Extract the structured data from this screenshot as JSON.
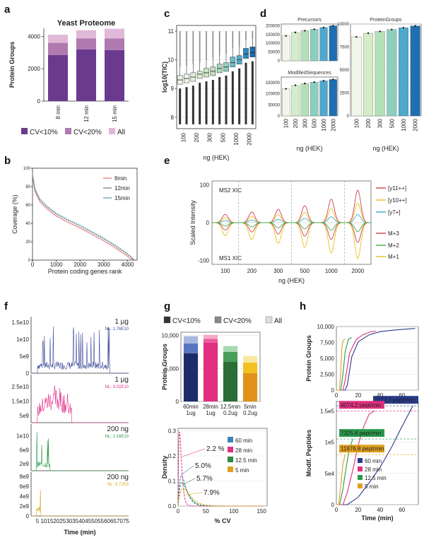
{
  "panels": {
    "a": "a",
    "b": "b",
    "c": "c",
    "d": "d",
    "e": "e",
    "f": "f",
    "g": "g",
    "h": "h"
  },
  "chart_data": [
    {
      "id": "a",
      "type": "bar",
      "stacked": true,
      "title": "Yeast Proteome",
      "ylabel": "Protein Groups",
      "xlabel": "",
      "categories": [
        "8 min",
        "12 min",
        "15 min"
      ],
      "ylim": [
        0,
        4500
      ],
      "yticks": [
        "0",
        "2000",
        "4000"
      ],
      "series": [
        {
          "name": "CV<10%",
          "color": "#6a3a8e",
          "values": [
            2850,
            3200,
            3150
          ]
        },
        {
          "name": "CV<20%",
          "color": "#b07ab0",
          "values": [
            750,
            680,
            720
          ]
        },
        {
          "name": "All",
          "color": "#e0b8d8",
          "values": [
            500,
            500,
            600
          ]
        }
      ]
    },
    {
      "id": "b",
      "type": "line",
      "xlabel": "Protein coding genes rank",
      "ylabel": "Coverage (%)",
      "xlim": [
        0,
        4400
      ],
      "ylim": [
        0,
        100
      ],
      "xticks": [
        "0",
        "1000",
        "2000",
        "3000",
        "4000"
      ],
      "yticks": [
        "0",
        "20",
        "40",
        "60",
        "80",
        "100"
      ],
      "x": [
        0,
        100,
        300,
        600,
        1000,
        1500,
        2000,
        2500,
        3000,
        3500,
        3900,
        4100,
        4300
      ],
      "series": [
        {
          "name": "8min",
          "color": "#e07070",
          "values": [
            92,
            75,
            64,
            56,
            48,
            41,
            35,
            28,
            21,
            13,
            6,
            2,
            0
          ]
        },
        {
          "name": "12min",
          "color": "#777777",
          "values": [
            93,
            77,
            66,
            58,
            50,
            43,
            37,
            30,
            23,
            15,
            8,
            4,
            0
          ]
        },
        {
          "name": "15min",
          "color": "#4fa3a8",
          "values": [
            94,
            78,
            67,
            59,
            51,
            44,
            38,
            31,
            24,
            16,
            9,
            5,
            0
          ]
        }
      ]
    },
    {
      "id": "c",
      "type": "box",
      "xlabel": "ng (HEK)",
      "ylabel": "log10(TIC)",
      "ylim": [
        7.6,
        11.2
      ],
      "yticks": [
        "8",
        "9",
        "10",
        "11"
      ],
      "categories": [
        "100",
        "200",
        "300",
        "500",
        "1000",
        "2000"
      ],
      "boxes": [
        {
          "cat": "100",
          "color": "#eef6e8",
          "q1": 9.15,
          "med": 9.3,
          "q3": 9.45
        },
        {
          "cat": "100",
          "color": "#eef6e8",
          "q1": 9.2,
          "med": 9.35,
          "q3": 9.5
        },
        {
          "cat": "200",
          "color": "#e2f0d8",
          "q1": 9.25,
          "med": 9.4,
          "q3": 9.55
        },
        {
          "cat": "200",
          "color": "#d8ecd0",
          "q1": 9.35,
          "med": 9.5,
          "q3": 9.6
        },
        {
          "cat": "300",
          "color": "#cce6c6",
          "q1": 9.4,
          "med": 9.55,
          "q3": 9.7
        },
        {
          "cat": "300",
          "color": "#bfe0c0",
          "q1": 9.45,
          "med": 9.6,
          "q3": 9.75
        },
        {
          "cat": "500",
          "color": "#a8d8c0",
          "q1": 9.55,
          "med": 9.7,
          "q3": 9.85
        },
        {
          "cat": "500",
          "color": "#90d0c0",
          "q1": 9.6,
          "med": 9.75,
          "q3": 9.9
        },
        {
          "cat": "1000",
          "color": "#6cbccc",
          "q1": 9.75,
          "med": 9.9,
          "q3": 10.1
        },
        {
          "cat": "1000",
          "color": "#4faed0",
          "q1": 9.85,
          "med": 10.0,
          "q3": 10.15
        },
        {
          "cat": "2000",
          "color": "#2a8ac4",
          "q1": 10.05,
          "med": 10.2,
          "q3": 10.4
        },
        {
          "cat": "2000",
          "color": "#1c6eb0",
          "q1": 10.1,
          "med": 10.25,
          "q3": 10.45
        }
      ]
    },
    {
      "id": "d1",
      "type": "bar",
      "title": "Precursors",
      "xlabel": "ng (HEK)",
      "ylabel": "",
      "categories": [
        "100",
        "200",
        "300",
        "500",
        "1000",
        "2000"
      ],
      "ylim": [
        0,
        210000
      ],
      "yticks": [
        "0",
        "50000",
        "100000",
        "150000",
        "200000"
      ],
      "values": [
        142000,
        162000,
        172000,
        180000,
        190000,
        200000
      ],
      "colors": [
        "#f0f7ea",
        "#d4ecc8",
        "#b4e0b8",
        "#8ccfbe",
        "#4fa8ce",
        "#1f6fb0"
      ]
    },
    {
      "id": "d2",
      "type": "bar",
      "title": "ModifiedSequences",
      "xlabel": "ng (HEK)",
      "ylabel": "",
      "categories": [
        "100",
        "200",
        "300",
        "500",
        "1000",
        "2000"
      ],
      "ylim": [
        0,
        175000
      ],
      "yticks": [
        "0",
        "50000",
        "100000",
        "150000"
      ],
      "values": [
        122000,
        138000,
        146000,
        152000,
        158000,
        164000
      ],
      "colors": [
        "#f0f7ea",
        "#d4ecc8",
        "#b4e0b8",
        "#8ccfbe",
        "#4fa8ce",
        "#1f6fb0"
      ]
    },
    {
      "id": "d3",
      "type": "bar",
      "title": "ProteinGroups",
      "xlabel": "ng (HEK)",
      "ylabel": "",
      "categories": [
        "100",
        "200",
        "300",
        "500",
        "1000",
        "2000"
      ],
      "ylim": [
        0,
        10000
      ],
      "yticks": [
        "0",
        "2500",
        "5000",
        "7500",
        "10000"
      ],
      "values": [
        8600,
        9000,
        9200,
        9400,
        9600,
        9800
      ],
      "colors": [
        "#f0f7ea",
        "#d4ecc8",
        "#b4e0b8",
        "#8ccfbe",
        "#4fa8ce",
        "#1f6fb0"
      ]
    },
    {
      "id": "e",
      "type": "line",
      "xlabel": "ng (HEK)",
      "ylabel": "Scaled Intensity",
      "ylim": [
        -110,
        110
      ],
      "yticks": [
        "-100",
        "0",
        "100"
      ],
      "categories": [
        "100",
        "200",
        "300",
        "500",
        "1000",
        "2000"
      ],
      "upper_label": "MS2 XIC",
      "lower_label": "MS1 XIC",
      "peaks_upper": [
        22,
        28,
        35,
        45,
        62,
        86
      ],
      "peaks_lower": [
        -35,
        -45,
        -55,
        -65,
        -80,
        -95
      ],
      "series": [
        {
          "name": "[y11++]",
          "color": "#d04050"
        },
        {
          "name": "[y10++]",
          "color": "#e6c020"
        },
        {
          "name": "[y7+]",
          "color": "#40a8d8"
        },
        {
          "name": "M+3",
          "color": "#d04050"
        },
        {
          "name": "M+2",
          "color": "#40b040"
        },
        {
          "name": "M+1",
          "color": "#e6c020"
        }
      ]
    },
    {
      "id": "f",
      "type": "line",
      "xlabel": "Time (min)",
      "ylabel": "",
      "xlim": [
        0,
        77
      ],
      "xticks": [
        "5",
        "10",
        "15",
        "20",
        "25",
        "30",
        "35",
        "40",
        "45",
        "50",
        "55",
        "60",
        "65",
        "70",
        "75"
      ],
      "traces": [
        {
          "load": "1 µg",
          "nl": "NL: 1.76E10",
          "color": "#3a4a9a",
          "start": 5,
          "end": 62,
          "peak": 1.76,
          "yticks": [
            "0",
            "5e9",
            "1e10",
            "1.5e10"
          ]
        },
        {
          "load": "1 µg",
          "nl": "NL: 3.02E10",
          "color": "#e0308a",
          "start": 5,
          "end": 32,
          "peak": 3.02,
          "yticks": [
            "5e9",
            "1.5e10",
            "2.5e10"
          ]
        },
        {
          "load": "200 ng",
          "nl": "NL: 1.18E10",
          "color": "#2a9a4a",
          "start": 4,
          "end": 15,
          "peak": 1.18,
          "yticks": [
            "2e9",
            "6e9",
            "1e10"
          ]
        },
        {
          "load": "200 ng",
          "nl": "NL: 9.72E9",
          "color": "#d8a820",
          "start": 4,
          "end": 8,
          "peak": 0.97,
          "yticks": [
            "0",
            "2e9",
            "4e9",
            "6e9",
            "8e9"
          ]
        }
      ]
    },
    {
      "id": "g1",
      "type": "bar",
      "stacked": true,
      "xlabel": "",
      "ylabel": "Protein Groups",
      "categories": [
        "60min\n1ug",
        "28min\n1ug",
        "12.5min\n0.2ug",
        "5min\n0.2ug"
      ],
      "category_lines": [
        [
          "60min",
          "1ug"
        ],
        [
          "28min",
          "1ug"
        ],
        [
          "12.5min",
          "0.2ug"
        ],
        [
          "5min",
          "0.2ug"
        ]
      ],
      "ylim": [
        0,
        10500
      ],
      "yticks": [
        "0",
        "5,000",
        "10,000"
      ],
      "legend": [
        "CV<10%",
        "CV<20%",
        "All"
      ],
      "legend_colors": [
        "#333333",
        "#888888",
        "#dddddd"
      ],
      "series": [
        {
          "name": "CV<10%",
          "values": [
            7300,
            8900,
            6000,
            4300
          ],
          "colors": [
            "#1e2a6a",
            "#e0307f",
            "#2a6e36",
            "#e0921a"
          ]
        },
        {
          "name": "CV<20%",
          "values": [
            1500,
            600,
            1500,
            1600
          ],
          "colors": [
            "#5a74c0",
            "#f05aa0",
            "#4a9e5a",
            "#f2c020"
          ]
        },
        {
          "name": "All",
          "values": [
            1100,
            600,
            900,
            1000
          ],
          "colors": [
            "#a8b8e0",
            "#f8a8c8",
            "#a8d8b0",
            "#f8e8a0"
          ]
        }
      ]
    },
    {
      "id": "g2",
      "type": "line",
      "xlabel": "% CV",
      "ylabel": "Density",
      "xlim": [
        0,
        160
      ],
      "ylim": [
        0,
        0.31
      ],
      "xticks": [
        "0",
        "50",
        "100",
        "150"
      ],
      "yticks": [
        "0.0",
        "0.1",
        "0.2",
        "0.3"
      ],
      "annotations": [
        {
          "text": "2.2 %",
          "color": "#e0307f"
        },
        {
          "text": "5.0%",
          "color": "#3a86b8"
        },
        {
          "text": "5.7%",
          "color": "#2a8a40"
        },
        {
          "text": "7.9%",
          "color": "#e0a020"
        }
      ],
      "series": [
        {
          "name": "60 min",
          "color": "#3a86b8",
          "peak": 0.12,
          "width": 6
        },
        {
          "name": "28 min",
          "color": "#e0307f",
          "peak": 0.3,
          "width": 2.5
        },
        {
          "name": "12.5 min",
          "color": "#2a8a40",
          "peak": 0.095,
          "width": 7
        },
        {
          "name": "5 min",
          "color": "#e0a020",
          "peak": 0.07,
          "width": 9
        }
      ]
    },
    {
      "id": "h1",
      "type": "line",
      "xlabel": "",
      "ylabel": "Protein Groups",
      "xlim": [
        0,
        75
      ],
      "ylim": [
        0,
        10000
      ],
      "xticks": [
        "0",
        "20",
        "40",
        "60"
      ],
      "yticks": [
        "0",
        "2,500",
        "5,000",
        "7,500",
        "10,000"
      ],
      "series": [
        {
          "name": "60 min",
          "color": "#2a3a8a",
          "x": [
            0,
            8,
            10,
            14,
            20,
            30,
            40,
            50,
            60,
            72
          ],
          "values": [
            0,
            0,
            800,
            5200,
            7600,
            8700,
            9200,
            9400,
            9550,
            9700
          ]
        },
        {
          "name": "28 min",
          "color": "#e0307f",
          "x": [
            0,
            6,
            8,
            12,
            18,
            24,
            30,
            36
          ],
          "values": [
            0,
            0,
            1500,
            5800,
            7900,
            8700,
            9100,
            9300
          ]
        },
        {
          "name": "12.5 min",
          "color": "#2a9a4a",
          "x": [
            0,
            4,
            6,
            8,
            11,
            14
          ],
          "values": [
            0,
            0,
            2500,
            6000,
            8000,
            8300
          ]
        },
        {
          "name": "5 min",
          "color": "#e0a020",
          "x": [
            0,
            3,
            4,
            5,
            6,
            8
          ],
          "values": [
            0,
            0,
            3000,
            6500,
            7800,
            8000
          ]
        }
      ]
    },
    {
      "id": "h2",
      "type": "line",
      "xlabel": "Time (min)",
      "ylabel": "Modif. Peptides",
      "xlim": [
        0,
        75
      ],
      "ylim": [
        0,
        165000
      ],
      "xticks": [
        "0",
        "20",
        "40",
        "60"
      ],
      "yticks": [
        "0",
        "5e4",
        "1e5",
        "1.5e5"
      ],
      "rate_labels": [
        {
          "text": "2117.7 pept/min",
          "color": "#2a3a8a"
        },
        {
          "text": "4074.2 pept/min",
          "color": "#e0307f"
        },
        {
          "text": "7325.8 pept/min",
          "color": "#2a9a4a"
        },
        {
          "text": "11976.8 pept/min",
          "color": "#e0a020"
        }
      ],
      "series": [
        {
          "name": "60 min",
          "color": "#2a3a8a",
          "x": [
            0,
            10,
            20,
            30,
            40,
            50,
            60,
            70
          ],
          "values": [
            0,
            0,
            12000,
            35000,
            60000,
            90000,
            125000,
            158000
          ]
        },
        {
          "name": "28 min",
          "color": "#e0307f",
          "x": [
            0,
            6,
            10,
            15,
            20,
            25,
            30,
            35
          ],
          "values": [
            0,
            0,
            20000,
            55000,
            95000,
            125000,
            145000,
            150000
          ]
        },
        {
          "name": "12.5 min",
          "color": "#2a9a4a",
          "x": [
            0,
            3,
            6,
            9,
            12,
            15
          ],
          "values": [
            0,
            0,
            25000,
            60000,
            90000,
            105000
          ]
        },
        {
          "name": "5 min",
          "color": "#e0a020",
          "x": [
            0,
            2,
            4,
            6,
            8
          ],
          "values": [
            0,
            0,
            30000,
            65000,
            80000
          ]
        }
      ]
    }
  ]
}
